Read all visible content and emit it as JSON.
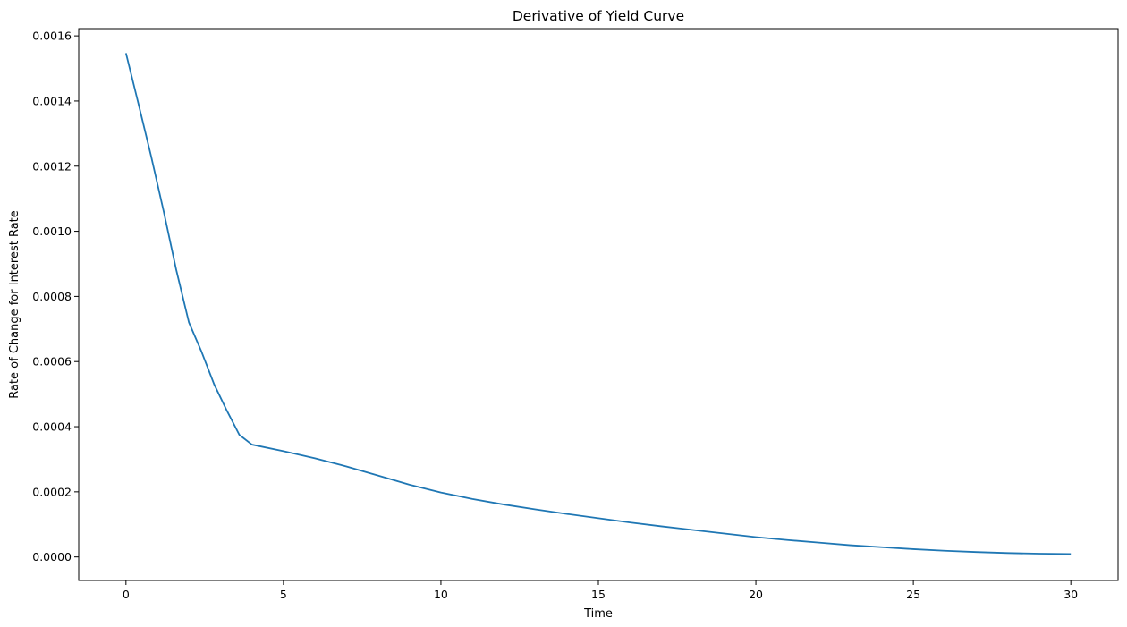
{
  "chart_data": {
    "type": "line",
    "title": "Derivative of Yield Curve",
    "xlabel": "Time",
    "ylabel": "Rate of Change for Interest Rate",
    "xlim": [
      -1.5,
      31.5
    ],
    "ylim": [
      -7.23e-05,
      0.0016223
    ],
    "xticks": [
      0,
      5,
      10,
      15,
      20,
      25,
      30
    ],
    "xtick_labels": [
      "0",
      "5",
      "10",
      "15",
      "20",
      "25",
      "30"
    ],
    "yticks": [
      0.0,
      0.0002,
      0.0004,
      0.0006,
      0.0008,
      0.001,
      0.0012,
      0.0014,
      0.0016
    ],
    "ytick_labels": [
      "0.0000",
      "0.0002",
      "0.0004",
      "0.0006",
      "0.0008",
      "0.0010",
      "0.0012",
      "0.0014",
      "0.0016"
    ],
    "grid": false,
    "line_color": "#1f77b4",
    "series": [
      {
        "x": [
          0,
          0.4,
          0.8,
          1.2,
          1.6,
          2.0,
          2.4,
          2.8,
          3.2,
          3.6,
          4.0,
          5,
          6,
          7,
          8,
          9,
          10,
          11,
          12,
          13,
          14,
          15,
          16,
          17,
          18,
          19,
          20,
          21,
          22,
          23,
          24,
          25,
          26,
          27,
          28,
          29,
          30
        ],
        "values": [
          0.001547,
          0.00139,
          0.00123,
          0.00106,
          0.00088,
          0.00072,
          0.00063,
          0.00053,
          0.00045,
          0.000375,
          0.000345,
          0.000325,
          0.000303,
          0.000278,
          0.00025,
          0.000222,
          0.000198,
          0.000178,
          0.000161,
          0.000146,
          0.000132,
          0.000119,
          0.000106,
          9.4e-05,
          8.3e-05,
          7.2e-05,
          6.1e-05,
          5.2e-05,
          4.4e-05,
          3.6e-05,
          3e-05,
          2.4e-05,
          1.9e-05,
          1.5e-05,
          1.2e-05,
          1e-05,
          9e-06
        ]
      }
    ]
  }
}
